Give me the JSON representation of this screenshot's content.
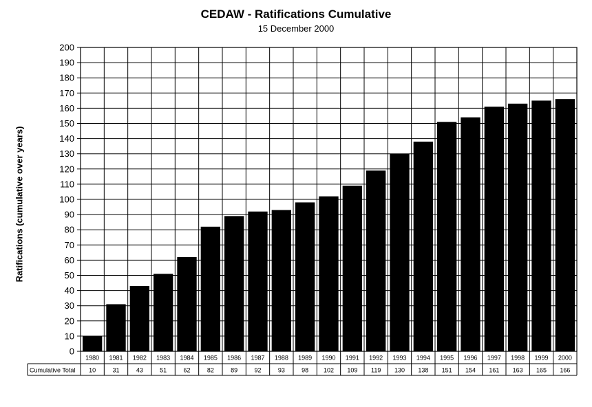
{
  "chart_data": {
    "type": "bar",
    "title": "CEDAW - Ratifications Cumulative",
    "subtitle": "15 December 2000",
    "ylabel": "Ratifications (cumulative over years)",
    "xlabel": "",
    "ylim": [
      0,
      200
    ],
    "yticks": [
      0,
      10,
      20,
      30,
      40,
      50,
      60,
      70,
      80,
      90,
      100,
      110,
      120,
      130,
      140,
      150,
      160,
      170,
      180,
      190,
      200
    ],
    "grid": true,
    "categories": [
      "1980",
      "1981",
      "1982",
      "1983",
      "1984",
      "1985",
      "1986",
      "1987",
      "1988",
      "1989",
      "1990",
      "1991",
      "1992",
      "1993",
      "1994",
      "1995",
      "1996",
      "1997",
      "1998",
      "1999",
      "2000"
    ],
    "series": [
      {
        "name": "Cumulative Total",
        "values": [
          10,
          31,
          43,
          51,
          62,
          82,
          89,
          92,
          93,
          98,
          102,
          109,
          119,
          130,
          138,
          151,
          154,
          161,
          163,
          165,
          166
        ]
      }
    ],
    "colors": {
      "bar": "#000000",
      "grid": "#000000"
    }
  }
}
